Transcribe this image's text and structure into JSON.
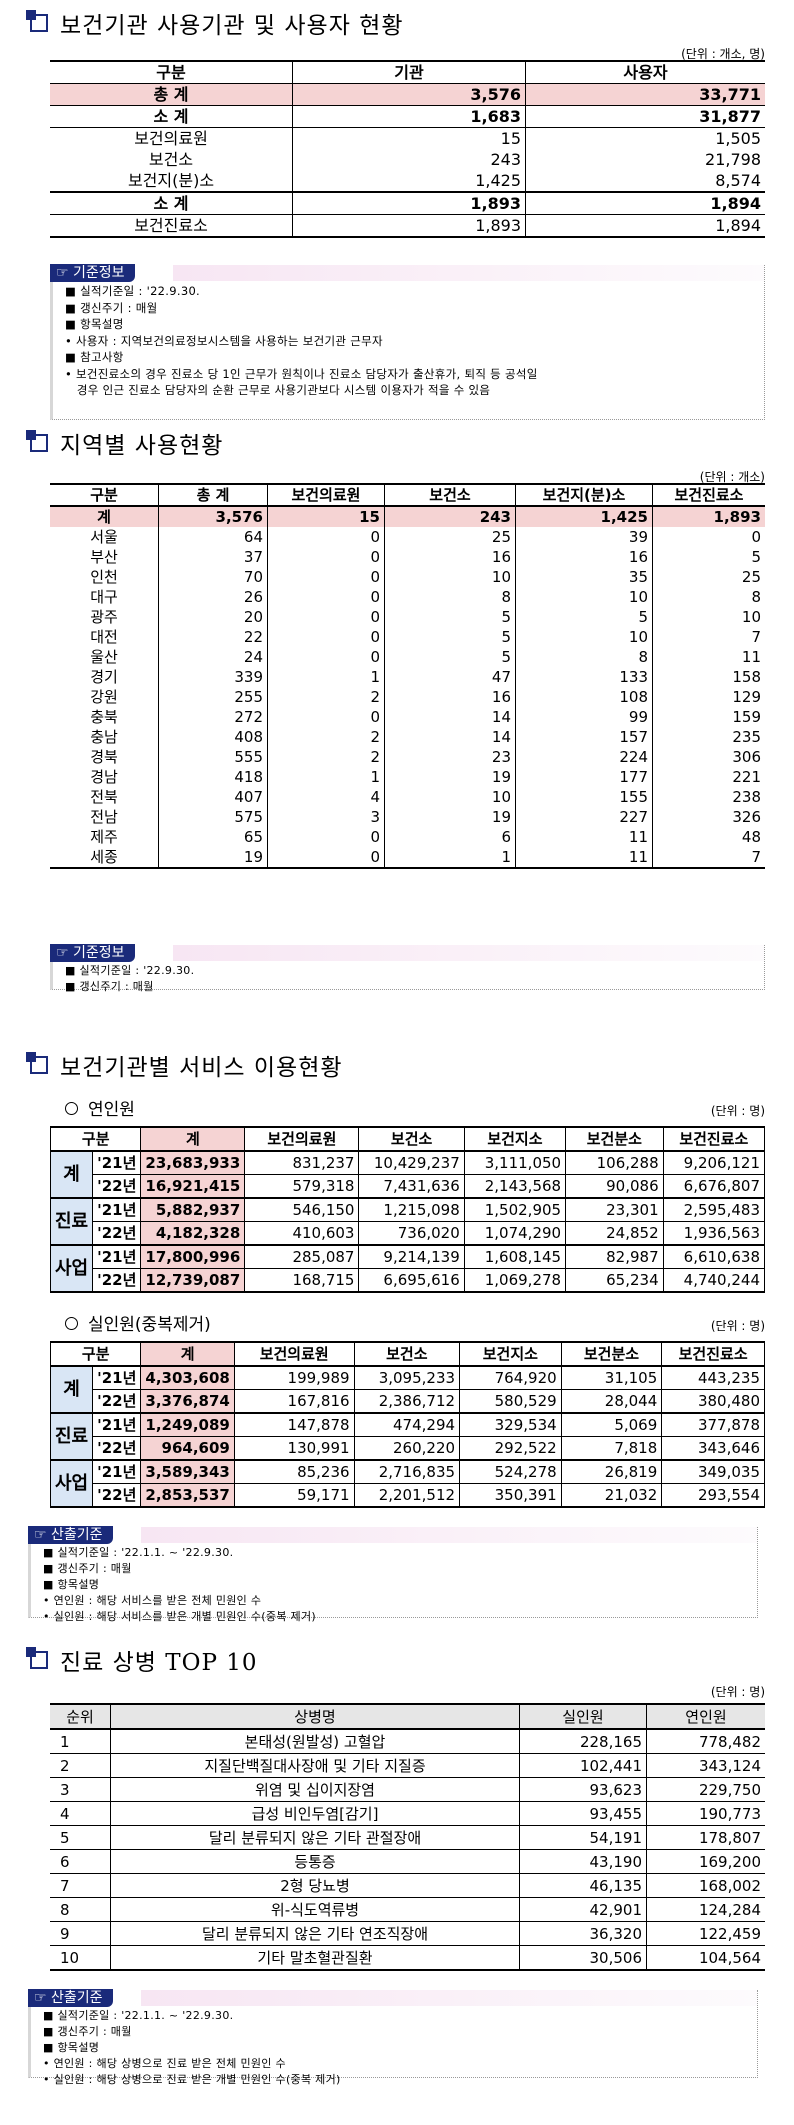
{
  "sec1": {
    "title": "보건기관 사용기관 및 사용자 현황",
    "unit": "(단위 : 개소, 명)",
    "headers": [
      "구분",
      "기관",
      "사용자"
    ],
    "rows": [
      {
        "label": "총 계",
        "a": "3,576",
        "b": "33,771"
      },
      {
        "label": "소 계",
        "a": "1,683",
        "b": "31,877"
      },
      {
        "label": "보건의료원",
        "a": "15",
        "b": "1,505"
      },
      {
        "label": "보건소",
        "a": "243",
        "b": "21,798"
      },
      {
        "label": "보건지(분)소",
        "a": "1,425",
        "b": "8,574"
      },
      {
        "label": "소 계",
        "a": "1,893",
        "b": "1,894"
      },
      {
        "label": "보건진료소",
        "a": "1,893",
        "b": "1,894"
      }
    ],
    "info_label": "기준정보",
    "info_lines": [
      "■ 실적기준일 : '22.9.30.",
      "■ 갱신주기 : 매월",
      "■ 항목설명",
      " • 사용자 : 지역보건의료정보시스템을 사용하는 보건기관 근무자",
      "■ 참고사항",
      " • 보건진료소의 경우 진료소 당 1인 근무가 원칙이나 진료소 담당자가 출산휴가, 퇴직 등 공석일",
      "   경우 인근 진료소 담당자의 순환 근무로 사용기관보다 시스템 이용자가 적을 수 있음"
    ]
  },
  "sec2": {
    "title": "지역별 사용현황",
    "unit": "(단위 : 개소)",
    "headers": [
      "구분",
      "총 계",
      "보건의료원",
      "보건소",
      "보건지(분)소",
      "보건진료소"
    ],
    "total": [
      "계",
      "3,576",
      "15",
      "243",
      "1,425",
      "1,893"
    ],
    "rows": [
      [
        "서울",
        "64",
        "0",
        "25",
        "39",
        "0"
      ],
      [
        "부산",
        "37",
        "0",
        "16",
        "16",
        "5"
      ],
      [
        "인천",
        "70",
        "0",
        "10",
        "35",
        "25"
      ],
      [
        "대구",
        "26",
        "0",
        "8",
        "10",
        "8"
      ],
      [
        "광주",
        "20",
        "0",
        "5",
        "5",
        "10"
      ],
      [
        "대전",
        "22",
        "0",
        "5",
        "10",
        "7"
      ],
      [
        "울산",
        "24",
        "0",
        "5",
        "8",
        "11"
      ],
      [
        "경기",
        "339",
        "1",
        "47",
        "133",
        "158"
      ],
      [
        "강원",
        "255",
        "2",
        "16",
        "108",
        "129"
      ],
      [
        "충북",
        "272",
        "0",
        "14",
        "99",
        "159"
      ],
      [
        "충남",
        "408",
        "2",
        "14",
        "157",
        "235"
      ],
      [
        "경북",
        "555",
        "2",
        "23",
        "224",
        "306"
      ],
      [
        "경남",
        "418",
        "1",
        "19",
        "177",
        "221"
      ],
      [
        "전북",
        "407",
        "4",
        "10",
        "155",
        "238"
      ],
      [
        "전남",
        "575",
        "3",
        "19",
        "227",
        "326"
      ],
      [
        "제주",
        "65",
        "0",
        "6",
        "11",
        "48"
      ],
      [
        "세종",
        "19",
        "0",
        "1",
        "11",
        "7"
      ]
    ],
    "info_label": "기준정보",
    "info_lines": [
      "■ 실적기준일 : '22.9.30.",
      "■ 갱신주기 : 매월"
    ]
  },
  "sec3": {
    "title": "보건기관별 서비스 이용현황",
    "sub1": "연인원",
    "sub1_unit": "(단위 : 명)",
    "sub2": "실인원(중복제거)",
    "sub2_unit": "(단위 : 명)",
    "headers": [
      "구분",
      "계",
      "보건의료원",
      "보건소",
      "보건지소",
      "보건분소",
      "보건진료소"
    ],
    "t1": [
      {
        "group": "계",
        "rows": [
          [
            "'21년",
            "23,683,933",
            "831,237",
            "10,429,237",
            "3,111,050",
            "106,288",
            "9,206,121"
          ],
          [
            "'22년",
            "16,921,415",
            "579,318",
            "7,431,636",
            "2,143,568",
            "90,086",
            "6,676,807"
          ]
        ]
      },
      {
        "group": "진료",
        "rows": [
          [
            "'21년",
            "5,882,937",
            "546,150",
            "1,215,098",
            "1,502,905",
            "23,301",
            "2,595,483"
          ],
          [
            "'22년",
            "4,182,328",
            "410,603",
            "736,020",
            "1,074,290",
            "24,852",
            "1,936,563"
          ]
        ]
      },
      {
        "group": "사업",
        "rows": [
          [
            "'21년",
            "17,800,996",
            "285,087",
            "9,214,139",
            "1,608,145",
            "82,987",
            "6,610,638"
          ],
          [
            "'22년",
            "12,739,087",
            "168,715",
            "6,695,616",
            "1,069,278",
            "65,234",
            "4,740,244"
          ]
        ]
      }
    ],
    "t2": [
      {
        "group": "계",
        "rows": [
          [
            "'21년",
            "4,303,608",
            "199,989",
            "3,095,233",
            "764,920",
            "31,105",
            "443,235"
          ],
          [
            "'22년",
            "3,376,874",
            "167,816",
            "2,386,712",
            "580,529",
            "28,044",
            "380,480"
          ]
        ]
      },
      {
        "group": "진료",
        "rows": [
          [
            "'21년",
            "1,249,089",
            "147,878",
            "474,294",
            "329,534",
            "5,069",
            "377,878"
          ],
          [
            "'22년",
            "964,609",
            "130,991",
            "260,220",
            "292,522",
            "7,818",
            "343,646"
          ]
        ]
      },
      {
        "group": "사업",
        "rows": [
          [
            "'21년",
            "3,589,343",
            "85,236",
            "2,716,835",
            "524,278",
            "26,819",
            "349,035"
          ],
          [
            "'22년",
            "2,853,537",
            "59,171",
            "2,201,512",
            "350,391",
            "21,032",
            "293,554"
          ]
        ]
      }
    ],
    "info_label": "산출기준",
    "info_lines": [
      "■ 실적기준일 : '22.1.1. ~ '22.9.30.",
      "■ 갱신주기 : 매월",
      "■ 항목설명",
      " • 연인원 : 해당 서비스를 받은 전체 민원인 수",
      " • 실인원 : 해당 서비스를 받은 개별 민원인 수(중복 제거)"
    ]
  },
  "sec4": {
    "title": "진료 상병 TOP 10",
    "unit": "(단위 : 명)",
    "headers": [
      "순위",
      "상병명",
      "실인원",
      "연인원"
    ],
    "rows": [
      [
        "1",
        "본태성(원발성) 고혈압",
        "228,165",
        "778,482"
      ],
      [
        "2",
        "지질단백질대사장애 및 기타 지질증",
        "102,441",
        "343,124"
      ],
      [
        "3",
        "위염 및 십이지장염",
        "93,623",
        "229,750"
      ],
      [
        "4",
        "급성 비인두염[감기]",
        "93,455",
        "190,773"
      ],
      [
        "5",
        "달리 분류되지 않은 기타 관절장애",
        "54,191",
        "178,807"
      ],
      [
        "6",
        "등통증",
        "43,190",
        "169,200"
      ],
      [
        "7",
        "2형 당뇨병",
        "46,135",
        "168,002"
      ],
      [
        "8",
        "위-식도역류병",
        "42,901",
        "124,284"
      ],
      [
        "9",
        "달리 분류되지 않은 기타 연조직장애",
        "36,320",
        "122,459"
      ],
      [
        "10",
        "기타 말초혈관질환",
        "30,506",
        "104,564"
      ]
    ],
    "info_label": "산출기준",
    "info_lines": [
      "■ 실적기준일 : '22.1.1. ~ '22.9.30.",
      "■ 갱신주기 : 매월",
      "■ 항목설명",
      " • 연인원 : 해당 상병으로 진료 받은 전체 민원인 수",
      " • 실인원 : 해당 상병으로 진료 받은 개별 민원인 수(중복 제거)"
    ]
  }
}
